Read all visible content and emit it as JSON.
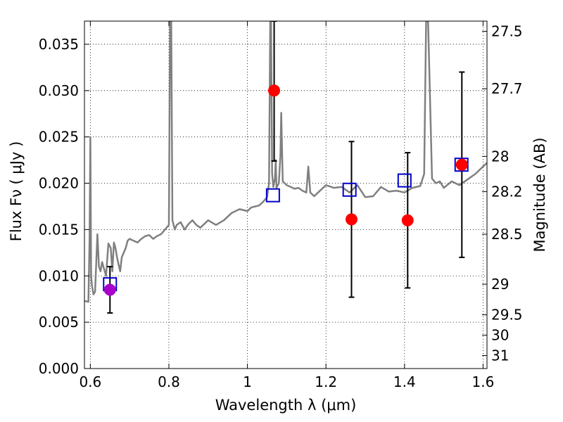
{
  "chart_data": {
    "type": "scatter",
    "xlabel": "Wavelength  λ (μm)",
    "ylabel": "Flux  Fν  ( μJy )",
    "y2label": "Magnitude (AB)",
    "xlim": [
      0.585,
      1.61
    ],
    "ylim": [
      0.0,
      0.0375
    ],
    "grid": true,
    "x_ticks": [
      0.6,
      0.8,
      1.0,
      1.2,
      1.4,
      1.6
    ],
    "x_tick_labels": [
      "0.6",
      "0.8",
      "1",
      "1.2",
      "1.4",
      "1.6"
    ],
    "y_ticks": [
      0.0,
      0.005,
      0.01,
      0.015,
      0.02,
      0.025,
      0.03,
      0.035
    ],
    "y_tick_labels": [
      "0.000",
      "0.005",
      "0.010",
      "0.015",
      "0.020",
      "0.025",
      "0.030",
      "0.035"
    ],
    "y2_ticks": [
      {
        "label": "27.5",
        "flux": 0.0364
      },
      {
        "label": "27.7",
        "flux": 0.0302
      },
      {
        "label": "28",
        "flux": 0.0229
      },
      {
        "label": "28.2",
        "flux": 0.0191
      },
      {
        "label": "28.5",
        "flux": 0.0145
      },
      {
        "label": "29",
        "flux": 0.0091
      },
      {
        "label": "29.5",
        "flux": 0.0058
      },
      {
        "label": "30",
        "flux": 0.0036
      },
      {
        "label": "31",
        "flux": 0.0014
      }
    ],
    "series": [
      {
        "kind": "model_spectrum",
        "color": "#808080",
        "x": [
          0.585,
          0.595,
          0.598,
          0.6,
          0.602,
          0.604,
          0.608,
          0.612,
          0.618,
          0.622,
          0.626,
          0.63,
          0.634,
          0.64,
          0.646,
          0.652,
          0.656,
          0.66,
          0.664,
          0.668,
          0.672,
          0.676,
          0.68,
          0.69,
          0.695,
          0.7,
          0.71,
          0.72,
          0.73,
          0.74,
          0.75,
          0.76,
          0.77,
          0.78,
          0.79,
          0.8,
          0.803,
          0.806,
          0.809,
          0.815,
          0.82,
          0.83,
          0.84,
          0.85,
          0.86,
          0.87,
          0.88,
          0.9,
          0.92,
          0.94,
          0.96,
          0.98,
          1.0,
          1.01,
          1.02,
          1.03,
          1.04,
          1.05,
          1.055,
          1.058,
          1.06,
          1.063,
          1.066,
          1.07,
          1.072,
          1.074,
          1.08,
          1.084,
          1.086,
          1.09,
          1.1,
          1.11,
          1.12,
          1.13,
          1.14,
          1.15,
          1.155,
          1.16,
          1.17,
          1.18,
          1.2,
          1.22,
          1.24,
          1.26,
          1.28,
          1.3,
          1.32,
          1.34,
          1.36,
          1.38,
          1.4,
          1.42,
          1.44,
          1.45,
          1.455,
          1.46,
          1.47,
          1.48,
          1.49,
          1.5,
          1.52,
          1.54,
          1.56,
          1.58,
          1.6,
          1.61
        ],
        "y": [
          0.0073,
          0.0072,
          0.014,
          0.025,
          0.01,
          0.009,
          0.008,
          0.0083,
          0.0145,
          0.011,
          0.0105,
          0.0115,
          0.0109,
          0.01,
          0.0135,
          0.013,
          0.0105,
          0.0136,
          0.013,
          0.012,
          0.0112,
          0.0105,
          0.012,
          0.013,
          0.0138,
          0.014,
          0.0138,
          0.0136,
          0.014,
          0.0143,
          0.0144,
          0.014,
          0.0143,
          0.0145,
          0.015,
          0.0155,
          0.0375,
          0.0375,
          0.016,
          0.015,
          0.0155,
          0.0158,
          0.015,
          0.0156,
          0.016,
          0.0155,
          0.0152,
          0.016,
          0.0155,
          0.016,
          0.0168,
          0.0172,
          0.017,
          0.0174,
          0.0175,
          0.0176,
          0.018,
          0.0185,
          0.02,
          0.0375,
          0.0375,
          0.021,
          0.0196,
          0.0205,
          0.0225,
          0.0195,
          0.02,
          0.023,
          0.0276,
          0.0202,
          0.0198,
          0.0196,
          0.0194,
          0.0195,
          0.0192,
          0.019,
          0.0218,
          0.019,
          0.0186,
          0.019,
          0.0198,
          0.0195,
          0.0196,
          0.019,
          0.0198,
          0.0185,
          0.0186,
          0.0196,
          0.0191,
          0.0192,
          0.019,
          0.0195,
          0.0197,
          0.021,
          0.0375,
          0.0375,
          0.0205,
          0.02,
          0.0202,
          0.0195,
          0.0202,
          0.0198,
          0.0204,
          0.021,
          0.0218,
          0.0222
        ]
      },
      {
        "kind": "model_points",
        "color": "#0000cc",
        "marker": "open-square",
        "x": [
          0.65,
          1.065,
          1.26,
          1.4,
          1.545
        ],
        "y": [
          0.0091,
          0.0187,
          0.0193,
          0.0203,
          0.022
        ]
      },
      {
        "kind": "observed_points",
        "color": "#ff0000",
        "marker": "filled-circle",
        "x": [
          0.65,
          1.068,
          1.265,
          1.408,
          1.546
        ],
        "y": [
          0.0085,
          0.03,
          0.0161,
          0.016,
          0.022
        ],
        "yerr_low": [
          0.006,
          0.0224,
          0.0077,
          0.0087,
          0.012
        ],
        "yerr_high": [
          0.011,
          0.0375,
          0.0245,
          0.0233,
          0.032
        ],
        "point_colors": [
          "#aa00cc",
          "#ff0000",
          "#ff0000",
          "#ff0000",
          "#ff0000"
        ]
      }
    ]
  }
}
